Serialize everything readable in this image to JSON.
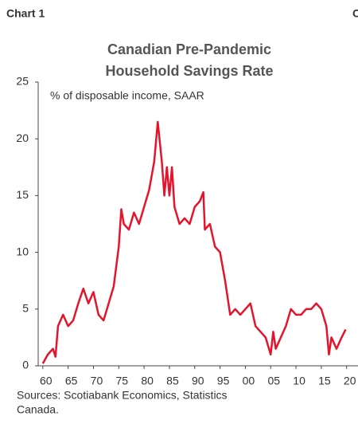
{
  "chart_label": "Chart 1",
  "next_chart_label": "C",
  "chart_data": {
    "type": "line",
    "title": [
      "Canadian Pre-Pandemic",
      "Household Savings Rate"
    ],
    "y_axis_label": "% of disposable income, SAAR",
    "source": [
      "Sources: Scotiabank Economics, Statistics",
      "Canada."
    ],
    "x": [
      1960,
      1961,
      1962,
      1962.5,
      1963,
      1964,
      1965,
      1966,
      1967,
      1968,
      1969,
      1970,
      1971,
      1972,
      1973,
      1974,
      1975,
      1975.5,
      1976,
      1977,
      1978,
      1979,
      1980,
      1981,
      1982,
      1982.7,
      1983.5,
      1984,
      1984.5,
      1985,
      1985.5,
      1986,
      1987,
      1988,
      1989,
      1990,
      1991,
      1991.7,
      1992,
      1993,
      1994,
      1995,
      1996,
      1997,
      1998,
      1999,
      2000,
      2001,
      2002,
      2003,
      2004,
      2005,
      2005.5,
      2006,
      2007,
      2008,
      2009,
      2010,
      2011,
      2012,
      2013,
      2014,
      2015,
      2016,
      2016.5,
      2017,
      2018,
      2019,
      2019.8
    ],
    "series": [
      {
        "name": "Household savings rate",
        "color": "#e4142c",
        "values": [
          0.2,
          1.0,
          1.5,
          0.8,
          3.5,
          4.5,
          3.5,
          4.0,
          5.5,
          6.8,
          5.5,
          6.5,
          4.5,
          4.0,
          5.5,
          7.0,
          10.5,
          13.8,
          12.5,
          12.0,
          13.5,
          12.5,
          14.0,
          15.5,
          18.0,
          21.5,
          18.0,
          15.0,
          17.5,
          15.0,
          17.5,
          14.0,
          12.5,
          13.0,
          12.5,
          14.0,
          14.5,
          15.3,
          12.0,
          12.5,
          10.5,
          10.0,
          7.5,
          4.5,
          5.0,
          4.5,
          5.0,
          5.5,
          3.5,
          3.0,
          2.5,
          1.0,
          3.0,
          1.5,
          2.5,
          3.5,
          5.0,
          4.5,
          4.5,
          5.0,
          5.0,
          5.5,
          5.0,
          3.5,
          1.0,
          2.5,
          1.5,
          2.5,
          3.2
        ]
      }
    ],
    "xlim": [
      1959.4,
      2021.3
    ],
    "xticks": [
      {
        "value": 1960,
        "label": "60"
      },
      {
        "value": 1965,
        "label": "65"
      },
      {
        "value": 1970,
        "label": "70"
      },
      {
        "value": 1975,
        "label": "75"
      },
      {
        "value": 1980,
        "label": "80"
      },
      {
        "value": 1985,
        "label": "85"
      },
      {
        "value": 1990,
        "label": "90"
      },
      {
        "value": 1995,
        "label": "95"
      },
      {
        "value": 2000,
        "label": "00"
      },
      {
        "value": 2005,
        "label": "05"
      },
      {
        "value": 2010,
        "label": "10"
      },
      {
        "value": 2015,
        "label": "15"
      },
      {
        "value": 2020,
        "label": "20"
      }
    ],
    "ylim": [
      0,
      25
    ],
    "yticks": [
      0,
      5,
      10,
      15,
      20,
      25
    ],
    "grid": false
  }
}
